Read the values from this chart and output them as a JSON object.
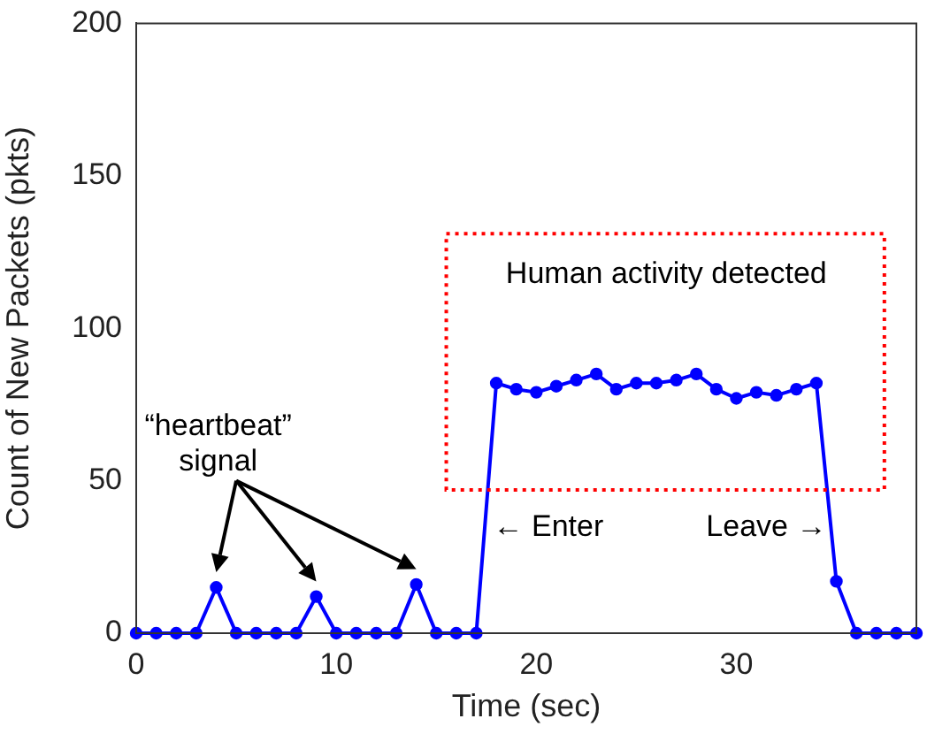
{
  "chart_data": {
    "type": "line",
    "xlabel": "Time (sec)",
    "ylabel": "Count of New Packets (pkts)",
    "x": [
      0,
      1,
      2,
      3,
      4,
      5,
      6,
      7,
      8,
      9,
      10,
      11,
      12,
      13,
      14,
      15,
      16,
      17,
      18,
      19,
      20,
      21,
      22,
      23,
      24,
      25,
      26,
      27,
      28,
      29,
      30,
      31,
      32,
      33,
      34,
      35,
      36,
      37,
      38,
      39
    ],
    "series": [
      {
        "color": "#0000ff",
        "values": [
          0,
          0,
          0,
          0,
          15,
          0,
          0,
          0,
          0,
          12,
          0,
          0,
          0,
          0,
          16,
          0,
          0,
          0,
          82,
          80,
          79,
          81,
          83,
          85,
          80,
          82,
          82,
          83,
          85,
          80,
          77,
          79,
          78,
          80,
          82,
          17,
          0,
          0,
          0,
          0
        ]
      }
    ],
    "xlim": [
      0,
      39
    ],
    "ylim": [
      0,
      200
    ],
    "xticks": [
      0,
      10,
      20,
      30
    ],
    "yticks": [
      0,
      50,
      100,
      150,
      200
    ],
    "grid": false,
    "legend": false,
    "marker": "circle",
    "line_style": "solid",
    "annotations": [
      "“heartbeat” signal",
      "Human activity detected",
      "← Enter",
      "Leave →"
    ]
  }
}
